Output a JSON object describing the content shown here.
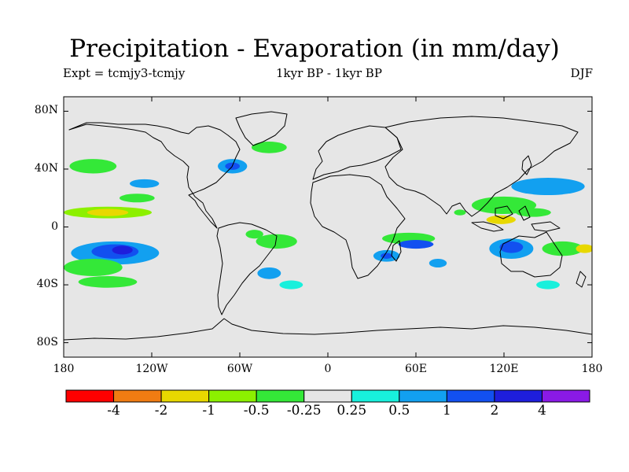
{
  "title": "Precipitation - Evaporation (in mm/day)",
  "subtitle_left": "Expt = tcmjy3-tcmjy",
  "subtitle_center": "1kyr BP - 1kyr BP",
  "subtitle_right": "DJF",
  "map": {
    "projection": "equirectangular",
    "lon_range": [
      -180,
      180
    ],
    "lat_range": [
      -90,
      90
    ],
    "background_color": "#e6e6e6",
    "coastline_color": "#000000",
    "lat_ticks": [
      {
        "value": 80,
        "label": "80N"
      },
      {
        "value": 40,
        "label": "40N"
      },
      {
        "value": 0,
        "label": "0"
      },
      {
        "value": -40,
        "label": "40S"
      },
      {
        "value": -80,
        "label": "80S"
      }
    ],
    "lon_ticks": [
      {
        "value": -180,
        "label": "180"
      },
      {
        "value": -120,
        "label": "120W"
      },
      {
        "value": -60,
        "label": "60W"
      },
      {
        "value": 0,
        "label": "0"
      },
      {
        "value": 60,
        "label": "60E"
      },
      {
        "value": 120,
        "label": "120E"
      },
      {
        "value": 180,
        "label": "180"
      }
    ]
  },
  "colorbar": {
    "colors": [
      "#ff0000",
      "#f07c12",
      "#e8d800",
      "#8cf000",
      "#34e838",
      "#e6e6e6",
      "#18f0dc",
      "#12a0f0",
      "#1250f0",
      "#1e1edc",
      "#8a1ae6"
    ],
    "labels": [
      "-4",
      "-2",
      "-1",
      "-0.5",
      "-0.25",
      "0.25",
      "0.5",
      "1",
      "2",
      "4"
    ]
  },
  "anomaly_regions": [
    {
      "lon": -150,
      "lat": 10,
      "rx": 30,
      "ry": 4,
      "level": 3
    },
    {
      "lon": -150,
      "lat": 10,
      "rx": 14,
      "ry": 2.5,
      "level": 2
    },
    {
      "lon": -145,
      "lat": -18,
      "rx": 30,
      "ry": 8,
      "level": 7
    },
    {
      "lon": -145,
      "lat": -17,
      "rx": 16,
      "ry": 5,
      "level": 8
    },
    {
      "lon": -140,
      "lat": -16,
      "rx": 7,
      "ry": 3,
      "level": 9
    },
    {
      "lon": -160,
      "lat": -28,
      "rx": 20,
      "ry": 6,
      "level": 4
    },
    {
      "lon": -150,
      "lat": -38,
      "rx": 20,
      "ry": 4,
      "level": 4
    },
    {
      "lon": -160,
      "lat": 42,
      "rx": 16,
      "ry": 5,
      "level": 4
    },
    {
      "lon": -125,
      "lat": 30,
      "rx": 10,
      "ry": 3,
      "level": 7
    },
    {
      "lon": -130,
      "lat": 20,
      "rx": 12,
      "ry": 3,
      "level": 4
    },
    {
      "lon": -65,
      "lat": 42,
      "rx": 10,
      "ry": 5,
      "level": 7
    },
    {
      "lon": -65,
      "lat": 42,
      "rx": 5,
      "ry": 2.5,
      "level": 8
    },
    {
      "lon": -40,
      "lat": 55,
      "rx": 12,
      "ry": 4,
      "level": 4
    },
    {
      "lon": -35,
      "lat": -10,
      "rx": 14,
      "ry": 5,
      "level": 4
    },
    {
      "lon": -50,
      "lat": -5,
      "rx": 6,
      "ry": 3,
      "level": 4
    },
    {
      "lon": -40,
      "lat": -32,
      "rx": 8,
      "ry": 4,
      "level": 7
    },
    {
      "lon": -25,
      "lat": -40,
      "rx": 8,
      "ry": 3,
      "level": 6
    },
    {
      "lon": 55,
      "lat": -8,
      "rx": 18,
      "ry": 4,
      "level": 4
    },
    {
      "lon": 40,
      "lat": -20,
      "rx": 9,
      "ry": 4,
      "level": 7
    },
    {
      "lon": 40,
      "lat": -20,
      "rx": 4,
      "ry": 2,
      "level": 8
    },
    {
      "lon": 60,
      "lat": -12,
      "rx": 12,
      "ry": 3,
      "level": 8
    },
    {
      "lon": 75,
      "lat": -25,
      "rx": 6,
      "ry": 3,
      "level": 7
    },
    {
      "lon": 120,
      "lat": 15,
      "rx": 22,
      "ry": 6,
      "level": 4
    },
    {
      "lon": 118,
      "lat": 5,
      "rx": 10,
      "ry": 3,
      "level": 2
    },
    {
      "lon": 150,
      "lat": 28,
      "rx": 25,
      "ry": 6,
      "level": 7
    },
    {
      "lon": 140,
      "lat": 10,
      "rx": 12,
      "ry": 3,
      "level": 4
    },
    {
      "lon": 125,
      "lat": -15,
      "rx": 15,
      "ry": 7,
      "level": 7
    },
    {
      "lon": 125,
      "lat": -14,
      "rx": 8,
      "ry": 4,
      "level": 8
    },
    {
      "lon": 160,
      "lat": -15,
      "rx": 14,
      "ry": 5,
      "level": 4
    },
    {
      "lon": 175,
      "lat": -15,
      "rx": 6,
      "ry": 3,
      "level": 2
    },
    {
      "lon": 90,
      "lat": 10,
      "rx": 4,
      "ry": 2,
      "level": 4
    },
    {
      "lon": 150,
      "lat": -40,
      "rx": 8,
      "ry": 3,
      "level": 6
    }
  ]
}
